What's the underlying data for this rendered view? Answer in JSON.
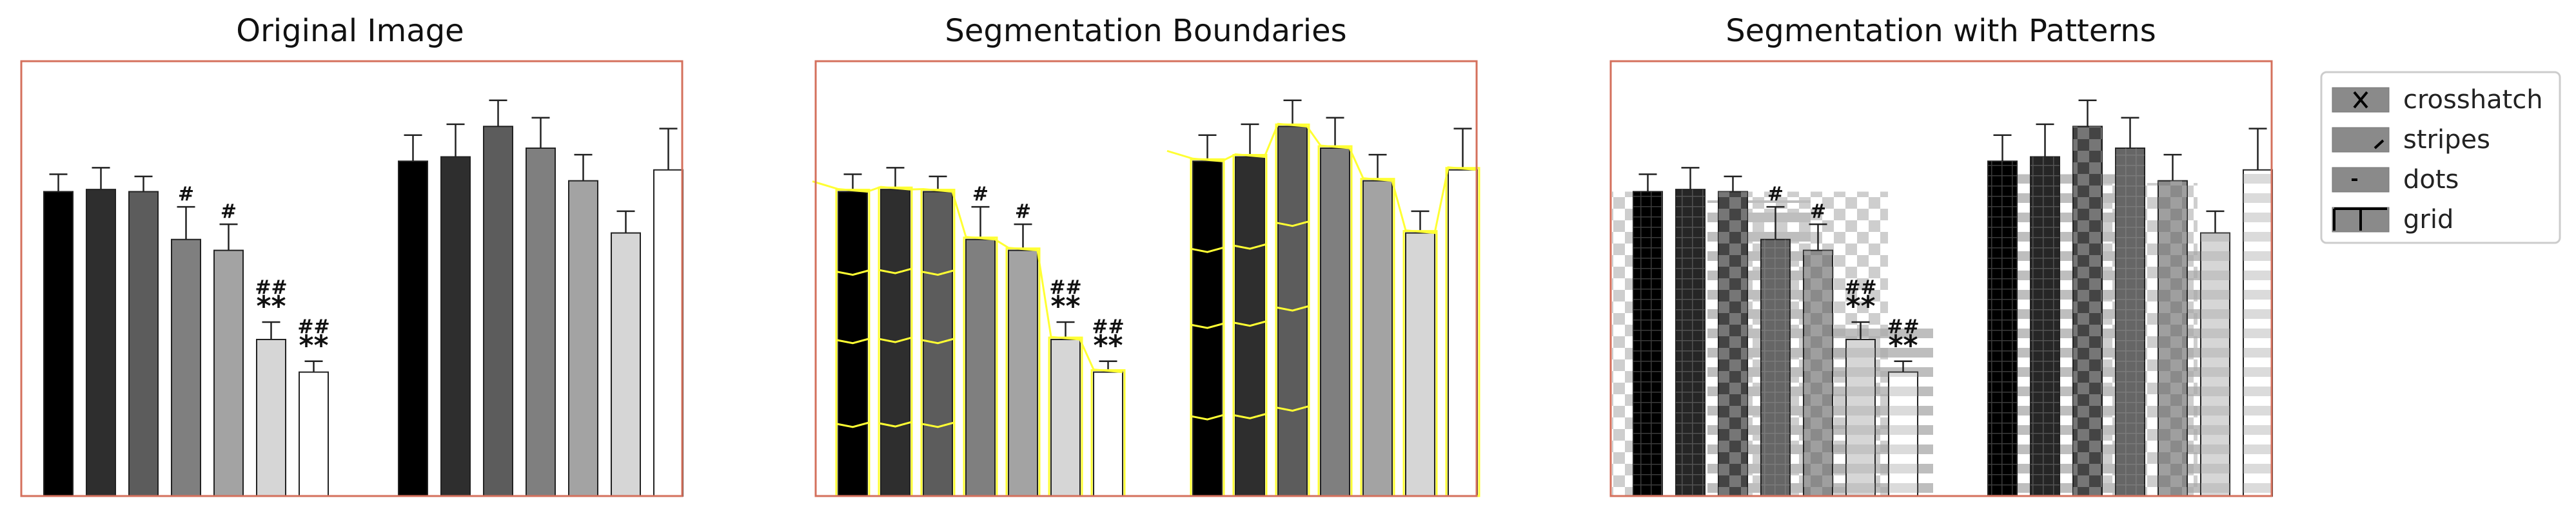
{
  "chart_data": [
    {
      "type": "bar",
      "title": "Original Image",
      "style": "plain",
      "groups": [
        {
          "values": [
            70,
            70.5,
            70,
            59,
            56.5,
            36,
            28.5
          ],
          "errors": [
            4,
            5,
            3.5,
            7.5,
            6,
            4,
            2.5
          ],
          "fills": [
            "#000000",
            "#2e2e2e",
            "#5c5c5c",
            "#7f7f7f",
            "#a3a3a3",
            "#d6d6d6",
            "#ffffff"
          ],
          "annotations": [
            "",
            "",
            "",
            "#",
            "#",
            "##\n**",
            "##\n**"
          ]
        },
        {
          "values": [
            77,
            78,
            85,
            80,
            72.5,
            60.5,
            75
          ],
          "errors": [
            6,
            7.5,
            6,
            7,
            6,
            5,
            9.5
          ],
          "fills": [
            "#000000",
            "#2e2e2e",
            "#5c5c5c",
            "#7f7f7f",
            "#a3a3a3",
            "#d6d6d6",
            "#ffffff"
          ],
          "annotations": [
            "",
            "",
            "",
            "",
            "",
            "",
            ""
          ]
        }
      ],
      "ylim": [
        0,
        100
      ],
      "frame_color": "#d4705c"
    },
    {
      "type": "bar",
      "title": "Segmentation Boundaries",
      "style": "boundaries",
      "boundary_color": "#ffff33",
      "groups": [
        {
          "values": [
            70,
            70.5,
            70,
            59,
            56.5,
            36,
            28.5
          ],
          "errors": [
            4,
            5,
            3.5,
            7.5,
            6,
            4,
            2.5
          ],
          "fills": [
            "#000000",
            "#2e2e2e",
            "#5c5c5c",
            "#7f7f7f",
            "#a3a3a3",
            "#d6d6d6",
            "#ffffff"
          ],
          "annotations": [
            "",
            "",
            "",
            "#",
            "#",
            "##\n**",
            "##\n**"
          ]
        },
        {
          "values": [
            77,
            78,
            85,
            80,
            72.5,
            60.5,
            75
          ],
          "errors": [
            6,
            7.5,
            6,
            7,
            6,
            5,
            9.5
          ],
          "fills": [
            "#000000",
            "#2e2e2e",
            "#5c5c5c",
            "#7f7f7f",
            "#a3a3a3",
            "#d6d6d6",
            "#ffffff"
          ],
          "annotations": [
            "",
            "",
            "",
            "",
            "",
            "",
            ""
          ]
        }
      ],
      "ylim": [
        0,
        100
      ],
      "frame_color": "#d4705c"
    },
    {
      "type": "bar",
      "title": "Segmentation with Patterns",
      "style": "patterns",
      "groups": [
        {
          "values": [
            70,
            70.5,
            70,
            59,
            56.5,
            36,
            28.5
          ],
          "errors": [
            4,
            5,
            3.5,
            7.5,
            6,
            4,
            2.5
          ],
          "fills": [
            "#000000",
            "#262626",
            "#444444",
            "#666666",
            "#8a8a8a",
            "#d6d6d6",
            "#ffffff"
          ],
          "annotations": [
            "",
            "",
            "",
            "#",
            "#",
            "##\n**",
            "##\n**"
          ]
        },
        {
          "values": [
            77,
            78,
            85,
            80,
            72.5,
            60.5,
            75
          ],
          "errors": [
            6,
            7.5,
            6,
            7,
            6,
            5,
            9.5
          ],
          "fills": [
            "#000000",
            "#262626",
            "#444444",
            "#666666",
            "#8a8a8a",
            "#d6d6d6",
            "#ffffff"
          ],
          "annotations": [
            "",
            "",
            "",
            "",
            "",
            "",
            ""
          ]
        }
      ],
      "ylim": [
        0,
        100
      ],
      "frame_color": "#d4705c",
      "legend": {
        "placement": "outside-right",
        "entries": [
          {
            "label": "crosshatch",
            "icon": "crosshatch-icon"
          },
          {
            "label": "stripes",
            "icon": "stripes-icon"
          },
          {
            "label": "dots",
            "icon": "dots-icon"
          },
          {
            "label": "grid",
            "icon": "grid-icon"
          }
        ]
      }
    }
  ]
}
